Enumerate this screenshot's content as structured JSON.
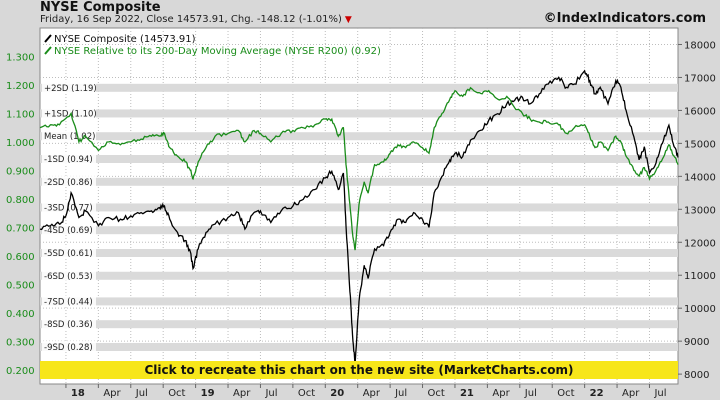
{
  "header": {
    "title": "NYSE Composite",
    "subtitle": "Friday, 16 Sep 2022, Close 14573.91, Chg. -148.12 (-1.01%)",
    "credit": "©IndexIndicators.com"
  },
  "banner": {
    "text": "Click to recreate this chart on the new site (MarketCharts.com)",
    "color": "#f7e61a"
  },
  "chart_data": {
    "type": "line",
    "legend_position": "top-left",
    "grid": true,
    "left_axis": {
      "range": [
        0.15,
        1.4
      ],
      "ticks": [
        "0.200",
        "0.300",
        "0.400",
        "0.500",
        "0.600",
        "0.700",
        "0.800",
        "0.900",
        "1.000",
        "1.100",
        "1.200",
        "1.300"
      ]
    },
    "right_axis": {
      "range": [
        7700,
        18500
      ],
      "ticks": [
        "8000",
        "9000",
        "10000",
        "11000",
        "12000",
        "13000",
        "14000",
        "15000",
        "16000",
        "17000",
        "18000"
      ]
    },
    "x_ticks": [
      {
        "label": "18",
        "bold": true
      },
      {
        "label": "Apr",
        "bold": false
      },
      {
        "label": "Jul",
        "bold": false
      },
      {
        "label": "Oct",
        "bold": false
      },
      {
        "label": "19",
        "bold": true
      },
      {
        "label": "Apr",
        "bold": false
      },
      {
        "label": "Jul",
        "bold": false
      },
      {
        "label": "Oct",
        "bold": false
      },
      {
        "label": "20",
        "bold": true
      },
      {
        "label": "Apr",
        "bold": false
      },
      {
        "label": "Jul",
        "bold": false
      },
      {
        "label": "Oct",
        "bold": false
      },
      {
        "label": "21",
        "bold": true
      },
      {
        "label": "Apr",
        "bold": false
      },
      {
        "label": "Jul",
        "bold": false
      },
      {
        "label": "Oct",
        "bold": false
      },
      {
        "label": "22",
        "bold": true
      },
      {
        "label": "Apr",
        "bold": false
      },
      {
        "label": "Jul",
        "bold": false
      }
    ],
    "x_start": 2017.8,
    "x_end": 2022.72,
    "sd_bands": [
      {
        "label": "+2SD (1.19)",
        "value": 1.19
      },
      {
        "label": "+1SD (1.10)",
        "value": 1.1
      },
      {
        "label": "Mean (1.02)",
        "value": 1.02
      },
      {
        "label": "-1SD (0.94)",
        "value": 0.94
      },
      {
        "label": "-2SD (0.86)",
        "value": 0.86
      },
      {
        "label": "-3SD (0.77)",
        "value": 0.77
      },
      {
        "label": "-4SD (0.69)",
        "value": 0.69
      },
      {
        "label": "-5SD (0.61)",
        "value": 0.61
      },
      {
        "label": "-6SD (0.53)",
        "value": 0.53
      },
      {
        "label": "-7SD (0.44)",
        "value": 0.44
      },
      {
        "label": "-8SD (0.36)",
        "value": 0.36
      },
      {
        "label": "-9SD (0.28)",
        "value": 0.28
      }
    ],
    "series": [
      {
        "name": "NYSE Composite (14573.91)",
        "axis": "right",
        "color": "#000000",
        "points": [
          [
            2017.8,
            12400
          ],
          [
            2017.88,
            12500
          ],
          [
            2017.95,
            12550
          ],
          [
            2018.0,
            12800
          ],
          [
            2018.04,
            13500
          ],
          [
            2018.1,
            12750
          ],
          [
            2018.15,
            12950
          ],
          [
            2018.25,
            12500
          ],
          [
            2018.33,
            12750
          ],
          [
            2018.42,
            12700
          ],
          [
            2018.5,
            12800
          ],
          [
            2018.58,
            12900
          ],
          [
            2018.66,
            12950
          ],
          [
            2018.72,
            13050
          ],
          [
            2018.76,
            13100
          ],
          [
            2018.8,
            12700
          ],
          [
            2018.86,
            12300
          ],
          [
            2018.92,
            12050
          ],
          [
            2018.96,
            11700
          ],
          [
            2018.98,
            11200
          ],
          [
            2019.02,
            11800
          ],
          [
            2019.08,
            12300
          ],
          [
            2019.15,
            12550
          ],
          [
            2019.25,
            12750
          ],
          [
            2019.33,
            12900
          ],
          [
            2019.38,
            12400
          ],
          [
            2019.45,
            12900
          ],
          [
            2019.5,
            12950
          ],
          [
            2019.58,
            12600
          ],
          [
            2019.66,
            12950
          ],
          [
            2019.75,
            13100
          ],
          [
            2019.83,
            13300
          ],
          [
            2019.92,
            13600
          ],
          [
            2020.0,
            13950
          ],
          [
            2020.05,
            14150
          ],
          [
            2020.1,
            13600
          ],
          [
            2020.14,
            14100
          ],
          [
            2020.16,
            12500
          ],
          [
            2020.19,
            10500
          ],
          [
            2020.21,
            9200
          ],
          [
            2020.23,
            8300
          ],
          [
            2020.26,
            10200
          ],
          [
            2020.3,
            11300
          ],
          [
            2020.33,
            10900
          ],
          [
            2020.38,
            11800
          ],
          [
            2020.45,
            11900
          ],
          [
            2020.5,
            12300
          ],
          [
            2020.56,
            12700
          ],
          [
            2020.62,
            12600
          ],
          [
            2020.68,
            12900
          ],
          [
            2020.75,
            12700
          ],
          [
            2020.8,
            12450
          ],
          [
            2020.84,
            13500
          ],
          [
            2020.9,
            14000
          ],
          [
            2020.96,
            14500
          ],
          [
            2021.0,
            14700
          ],
          [
            2021.06,
            14600
          ],
          [
            2021.12,
            15100
          ],
          [
            2021.2,
            15400
          ],
          [
            2021.26,
            15700
          ],
          [
            2021.33,
            15900
          ],
          [
            2021.4,
            16200
          ],
          [
            2021.46,
            16300
          ],
          [
            2021.52,
            16400
          ],
          [
            2021.58,
            16200
          ],
          [
            2021.65,
            16500
          ],
          [
            2021.72,
            16800
          ],
          [
            2021.8,
            17000
          ],
          [
            2021.86,
            16700
          ],
          [
            2021.92,
            16800
          ],
          [
            2022.0,
            17200
          ],
          [
            2022.04,
            16900
          ],
          [
            2022.08,
            16500
          ],
          [
            2022.12,
            16700
          ],
          [
            2022.18,
            16200
          ],
          [
            2022.24,
            16900
          ],
          [
            2022.28,
            16700
          ],
          [
            2022.32,
            16000
          ],
          [
            2022.38,
            15200
          ],
          [
            2022.42,
            14500
          ],
          [
            2022.46,
            14900
          ],
          [
            2022.5,
            14100
          ],
          [
            2022.55,
            14400
          ],
          [
            2022.6,
            15000
          ],
          [
            2022.65,
            15550
          ],
          [
            2022.69,
            14900
          ],
          [
            2022.72,
            14570
          ]
        ]
      },
      {
        "name": "NYSE Relative to its 200-Day Moving Average (NYSE R200) (0.92)",
        "axis": "left",
        "color": "#1a8c1a",
        "points": [
          [
            2017.8,
            1.05
          ],
          [
            2017.88,
            1.06
          ],
          [
            2017.95,
            1.06
          ],
          [
            2018.04,
            1.1
          ],
          [
            2018.1,
            1.0
          ],
          [
            2018.15,
            1.02
          ],
          [
            2018.25,
            0.97
          ],
          [
            2018.33,
            1.0
          ],
          [
            2018.42,
            0.99
          ],
          [
            2018.5,
            1.0
          ],
          [
            2018.58,
            1.01
          ],
          [
            2018.66,
            1.02
          ],
          [
            2018.72,
            1.02
          ],
          [
            2018.76,
            1.03
          ],
          [
            2018.8,
            0.98
          ],
          [
            2018.86,
            0.95
          ],
          [
            2018.92,
            0.93
          ],
          [
            2018.96,
            0.9
          ],
          [
            2018.98,
            0.87
          ],
          [
            2019.02,
            0.93
          ],
          [
            2019.08,
            0.98
          ],
          [
            2019.15,
            1.02
          ],
          [
            2019.25,
            1.03
          ],
          [
            2019.33,
            1.04
          ],
          [
            2019.38,
            1.0
          ],
          [
            2019.45,
            1.04
          ],
          [
            2019.5,
            1.03
          ],
          [
            2019.58,
            1.0
          ],
          [
            2019.66,
            1.03
          ],
          [
            2019.75,
            1.04
          ],
          [
            2019.83,
            1.05
          ],
          [
            2019.92,
            1.06
          ],
          [
            2020.0,
            1.08
          ],
          [
            2020.05,
            1.08
          ],
          [
            2020.1,
            1.02
          ],
          [
            2020.14,
            1.05
          ],
          [
            2020.16,
            0.92
          ],
          [
            2020.19,
            0.78
          ],
          [
            2020.21,
            0.68
          ],
          [
            2020.23,
            0.62
          ],
          [
            2020.26,
            0.78
          ],
          [
            2020.3,
            0.86
          ],
          [
            2020.33,
            0.82
          ],
          [
            2020.38,
            0.92
          ],
          [
            2020.45,
            0.93
          ],
          [
            2020.5,
            0.96
          ],
          [
            2020.56,
            0.99
          ],
          [
            2020.62,
            0.98
          ],
          [
            2020.68,
            1.0
          ],
          [
            2020.75,
            0.98
          ],
          [
            2020.8,
            0.96
          ],
          [
            2020.84,
            1.05
          ],
          [
            2020.9,
            1.1
          ],
          [
            2020.96,
            1.15
          ],
          [
            2021.0,
            1.18
          ],
          [
            2021.06,
            1.16
          ],
          [
            2021.12,
            1.19
          ],
          [
            2021.2,
            1.17
          ],
          [
            2021.26,
            1.18
          ],
          [
            2021.33,
            1.15
          ],
          [
            2021.4,
            1.16
          ],
          [
            2021.46,
            1.12
          ],
          [
            2021.52,
            1.1
          ],
          [
            2021.58,
            1.08
          ],
          [
            2021.65,
            1.07
          ],
          [
            2021.72,
            1.07
          ],
          [
            2021.8,
            1.06
          ],
          [
            2021.86,
            1.03
          ],
          [
            2021.92,
            1.05
          ],
          [
            2022.0,
            1.06
          ],
          [
            2022.04,
            1.02
          ],
          [
            2022.08,
            0.98
          ],
          [
            2022.12,
            1.0
          ],
          [
            2022.18,
            0.97
          ],
          [
            2022.24,
            1.02
          ],
          [
            2022.28,
            1.0
          ],
          [
            2022.32,
            0.95
          ],
          [
            2022.38,
            0.9
          ],
          [
            2022.42,
            0.88
          ],
          [
            2022.46,
            0.91
          ],
          [
            2022.5,
            0.87
          ],
          [
            2022.55,
            0.9
          ],
          [
            2022.6,
            0.94
          ],
          [
            2022.65,
            0.99
          ],
          [
            2022.69,
            0.95
          ],
          [
            2022.72,
            0.92
          ]
        ]
      }
    ]
  }
}
